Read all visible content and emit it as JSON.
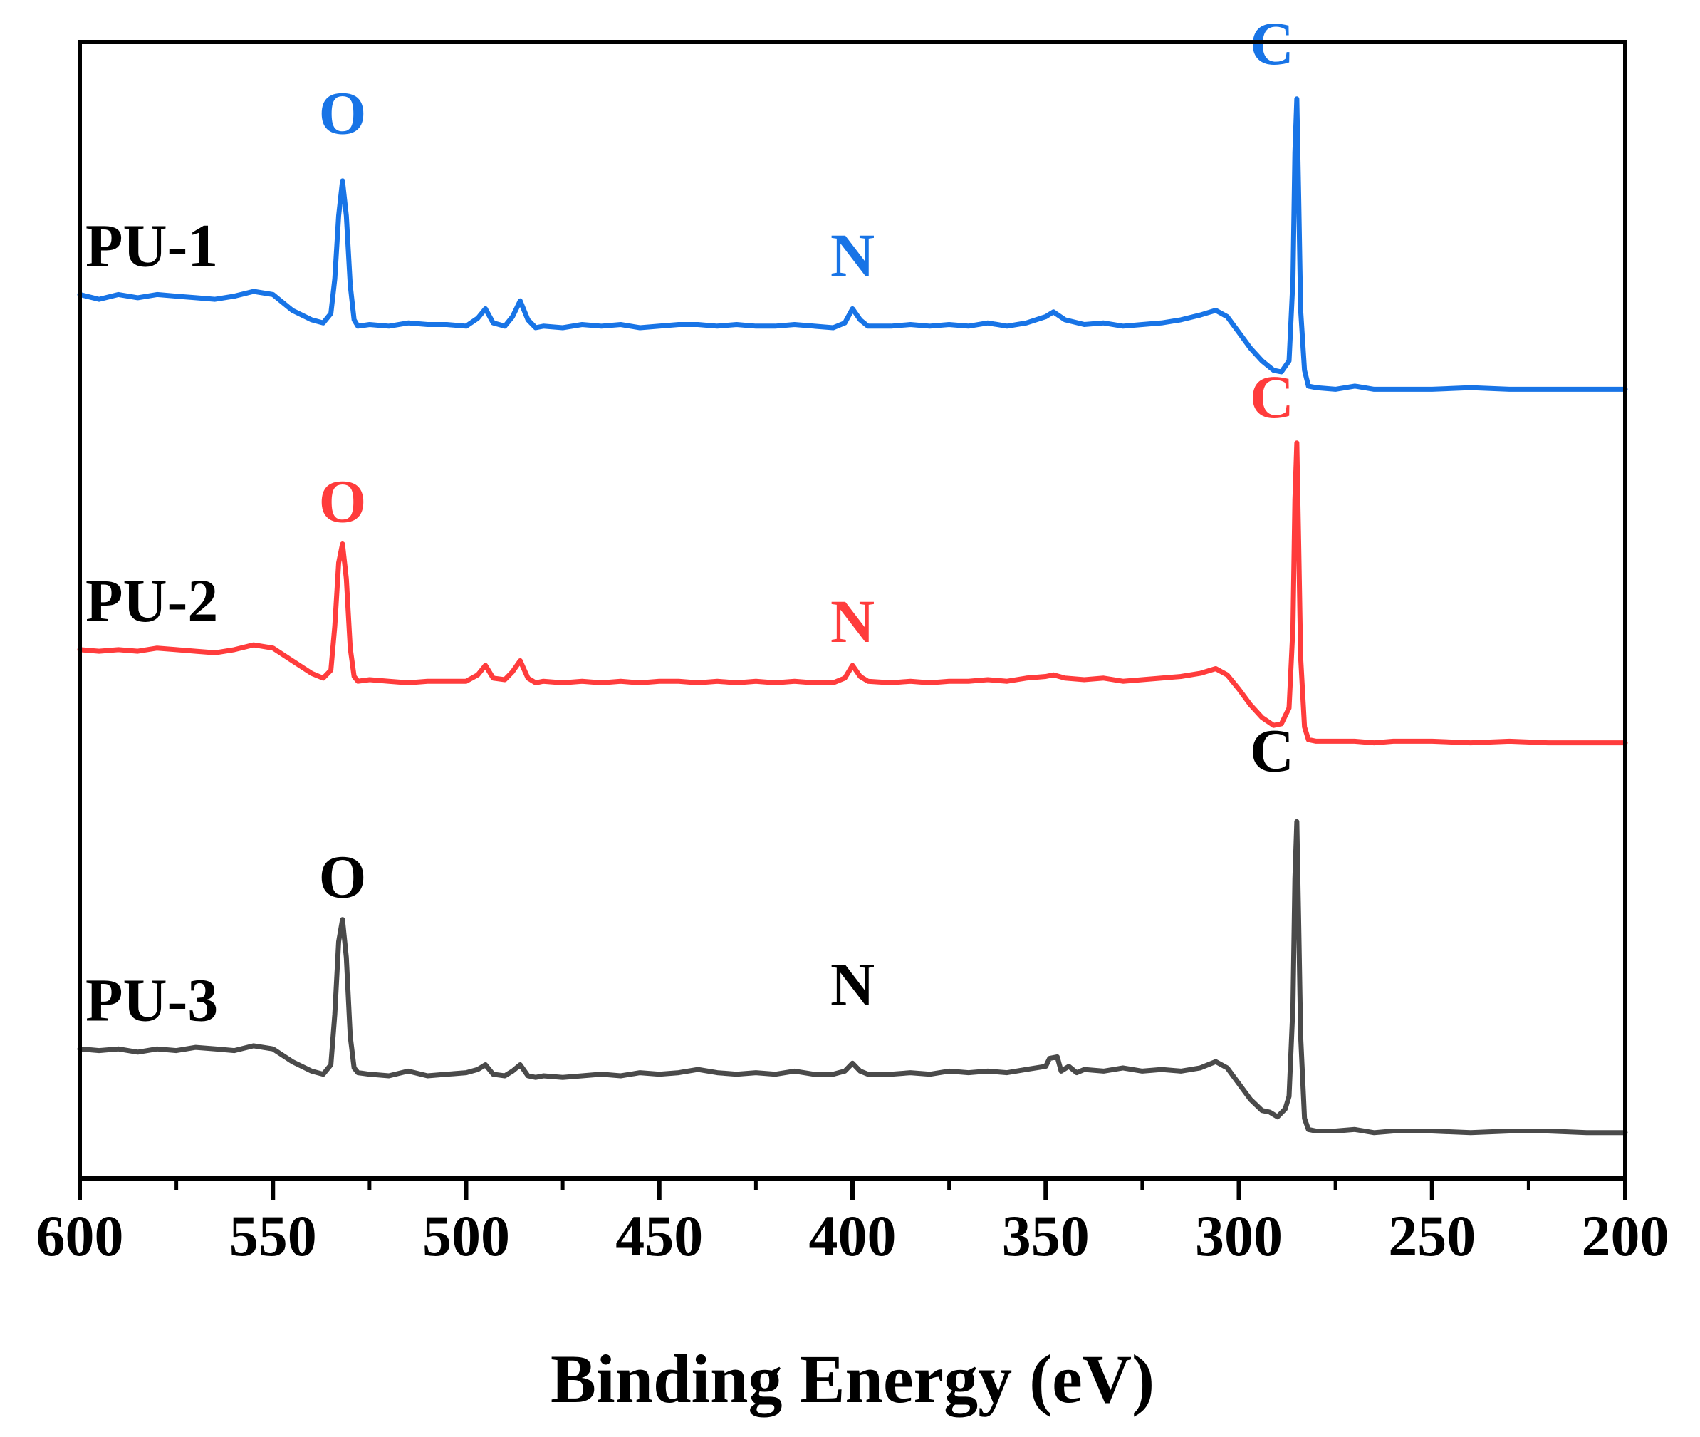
{
  "chart_data": {
    "type": "line",
    "xlabel": "Binding Energy (eV)",
    "ylabel": "",
    "xlim": [
      600,
      200
    ],
    "x_reversed": true,
    "ylim": [
      0,
      36
    ],
    "x_ticks": [
      600,
      550,
      500,
      450,
      400,
      350,
      300,
      250,
      200
    ],
    "x_tick_labels": [
      "600",
      "550",
      "500",
      "450",
      "400",
      "350",
      "300",
      "250",
      "200"
    ],
    "y_ticks_visible": false,
    "grid": false,
    "legend": "none",
    "series": [
      {
        "name": "PU-1",
        "color": "#1874e6",
        "peak_labels": [
          {
            "text": "O",
            "x": 532,
            "y": 33.1
          },
          {
            "text": "N",
            "x": 400,
            "y": 28.6
          },
          {
            "text": "C",
            "x": 285,
            "y": 35.3
          }
        ],
        "points": [
          [
            600,
            28.0
          ],
          [
            595,
            27.85
          ],
          [
            590,
            28.0
          ],
          [
            585,
            27.9
          ],
          [
            580,
            28.0
          ],
          [
            575,
            27.95
          ],
          [
            570,
            27.9
          ],
          [
            565,
            27.85
          ],
          [
            560,
            27.95
          ],
          [
            555,
            28.1
          ],
          [
            550,
            28.0
          ],
          [
            545,
            27.5
          ],
          [
            540,
            27.2
          ],
          [
            537,
            27.1
          ],
          [
            535,
            27.4
          ],
          [
            534,
            28.5
          ],
          [
            533,
            30.5
          ],
          [
            532,
            31.6
          ],
          [
            531,
            30.5
          ],
          [
            530,
            28.3
          ],
          [
            529,
            27.2
          ],
          [
            528,
            27.0
          ],
          [
            525,
            27.05
          ],
          [
            520,
            27.0
          ],
          [
            515,
            27.1
          ],
          [
            510,
            27.05
          ],
          [
            505,
            27.05
          ],
          [
            500,
            27.0
          ],
          [
            497,
            27.25
          ],
          [
            495,
            27.55
          ],
          [
            493,
            27.1
          ],
          [
            490,
            27.0
          ],
          [
            488,
            27.3
          ],
          [
            486,
            27.8
          ],
          [
            484,
            27.2
          ],
          [
            482,
            26.95
          ],
          [
            480,
            27.0
          ],
          [
            475,
            26.95
          ],
          [
            470,
            27.05
          ],
          [
            465,
            27.0
          ],
          [
            460,
            27.05
          ],
          [
            455,
            26.95
          ],
          [
            450,
            27.0
          ],
          [
            445,
            27.05
          ],
          [
            440,
            27.05
          ],
          [
            435,
            27.0
          ],
          [
            430,
            27.05
          ],
          [
            425,
            27.0
          ],
          [
            420,
            27.0
          ],
          [
            415,
            27.05
          ],
          [
            410,
            27.0
          ],
          [
            405,
            26.95
          ],
          [
            402,
            27.1
          ],
          [
            400,
            27.55
          ],
          [
            398,
            27.2
          ],
          [
            396,
            27.0
          ],
          [
            390,
            27.0
          ],
          [
            385,
            27.05
          ],
          [
            380,
            27.0
          ],
          [
            375,
            27.05
          ],
          [
            370,
            27.0
          ],
          [
            365,
            27.1
          ],
          [
            360,
            27.0
          ],
          [
            355,
            27.1
          ],
          [
            350,
            27.3
          ],
          [
            348,
            27.45
          ],
          [
            345,
            27.2
          ],
          [
            340,
            27.05
          ],
          [
            335,
            27.1
          ],
          [
            330,
            27.0
          ],
          [
            325,
            27.05
          ],
          [
            320,
            27.1
          ],
          [
            315,
            27.2
          ],
          [
            310,
            27.35
          ],
          [
            306,
            27.5
          ],
          [
            303,
            27.3
          ],
          [
            300,
            26.8
          ],
          [
            297,
            26.3
          ],
          [
            294,
            25.9
          ],
          [
            291,
            25.6
          ],
          [
            289,
            25.55
          ],
          [
            287,
            25.9
          ],
          [
            286,
            28.5
          ],
          [
            285.5,
            32.5
          ],
          [
            285,
            34.2
          ],
          [
            284.5,
            31.0
          ],
          [
            284,
            27.5
          ],
          [
            283,
            25.6
          ],
          [
            282,
            25.1
          ],
          [
            280,
            25.05
          ],
          [
            275,
            25.0
          ],
          [
            270,
            25.1
          ],
          [
            265,
            25.0
          ],
          [
            260,
            25.0
          ],
          [
            250,
            25.0
          ],
          [
            240,
            25.05
          ],
          [
            230,
            25.0
          ],
          [
            220,
            25.0
          ],
          [
            210,
            25.0
          ],
          [
            200,
            25.0
          ]
        ]
      },
      {
        "name": "PU-2",
        "color": "#ff3c3c",
        "peak_labels": [
          {
            "text": "O",
            "x": 532,
            "y": 20.8
          },
          {
            "text": "N",
            "x": 400,
            "y": 17.0
          },
          {
            "text": "C",
            "x": 285,
            "y": 24.1
          }
        ],
        "points": [
          [
            600,
            16.75
          ],
          [
            595,
            16.7
          ],
          [
            590,
            16.75
          ],
          [
            585,
            16.7
          ],
          [
            580,
            16.8
          ],
          [
            575,
            16.75
          ],
          [
            570,
            16.7
          ],
          [
            565,
            16.65
          ],
          [
            560,
            16.75
          ],
          [
            555,
            16.9
          ],
          [
            550,
            16.8
          ],
          [
            545,
            16.4
          ],
          [
            540,
            16.0
          ],
          [
            537,
            15.85
          ],
          [
            535,
            16.1
          ],
          [
            534,
            17.5
          ],
          [
            533,
            19.5
          ],
          [
            532,
            20.1
          ],
          [
            531,
            19.0
          ],
          [
            530,
            16.8
          ],
          [
            529,
            15.9
          ],
          [
            528,
            15.75
          ],
          [
            525,
            15.8
          ],
          [
            520,
            15.75
          ],
          [
            515,
            15.7
          ],
          [
            510,
            15.75
          ],
          [
            505,
            15.75
          ],
          [
            500,
            15.75
          ],
          [
            497,
            15.95
          ],
          [
            495,
            16.25
          ],
          [
            493,
            15.85
          ],
          [
            490,
            15.8
          ],
          [
            488,
            16.05
          ],
          [
            486,
            16.4
          ],
          [
            484,
            15.85
          ],
          [
            482,
            15.7
          ],
          [
            480,
            15.75
          ],
          [
            475,
            15.7
          ],
          [
            470,
            15.75
          ],
          [
            465,
            15.7
          ],
          [
            460,
            15.75
          ],
          [
            455,
            15.7
          ],
          [
            450,
            15.75
          ],
          [
            445,
            15.75
          ],
          [
            440,
            15.7
          ],
          [
            435,
            15.75
          ],
          [
            430,
            15.7
          ],
          [
            425,
            15.75
          ],
          [
            420,
            15.7
          ],
          [
            415,
            15.75
          ],
          [
            410,
            15.7
          ],
          [
            405,
            15.7
          ],
          [
            402,
            15.85
          ],
          [
            400,
            16.25
          ],
          [
            398,
            15.9
          ],
          [
            396,
            15.75
          ],
          [
            390,
            15.7
          ],
          [
            385,
            15.75
          ],
          [
            380,
            15.7
          ],
          [
            375,
            15.75
          ],
          [
            370,
            15.75
          ],
          [
            365,
            15.8
          ],
          [
            360,
            15.75
          ],
          [
            355,
            15.85
          ],
          [
            350,
            15.9
          ],
          [
            348,
            15.95
          ],
          [
            345,
            15.85
          ],
          [
            340,
            15.8
          ],
          [
            335,
            15.85
          ],
          [
            330,
            15.75
          ],
          [
            325,
            15.8
          ],
          [
            320,
            15.85
          ],
          [
            315,
            15.9
          ],
          [
            310,
            16.0
          ],
          [
            306,
            16.15
          ],
          [
            303,
            15.95
          ],
          [
            300,
            15.5
          ],
          [
            297,
            15.0
          ],
          [
            294,
            14.6
          ],
          [
            291,
            14.35
          ],
          [
            289,
            14.4
          ],
          [
            287,
            14.9
          ],
          [
            286,
            17.5
          ],
          [
            285.5,
            21.5
          ],
          [
            285,
            23.3
          ],
          [
            284.5,
            20.0
          ],
          [
            284,
            16.5
          ],
          [
            283,
            14.3
          ],
          [
            282,
            13.9
          ],
          [
            280,
            13.85
          ],
          [
            275,
            13.85
          ],
          [
            270,
            13.85
          ],
          [
            265,
            13.8
          ],
          [
            260,
            13.85
          ],
          [
            250,
            13.85
          ],
          [
            240,
            13.8
          ],
          [
            230,
            13.85
          ],
          [
            220,
            13.8
          ],
          [
            210,
            13.8
          ],
          [
            200,
            13.8
          ]
        ]
      },
      {
        "name": "PU-3",
        "color": "#4a4a4a",
        "peak_labels": [
          {
            "text": "O",
            "x": 532,
            "y": 8.9
          },
          {
            "text": "N",
            "x": 400,
            "y": 5.5
          },
          {
            "text": "C",
            "x": 285,
            "y": 12.9
          }
        ],
        "points": [
          [
            600,
            4.1
          ],
          [
            595,
            4.05
          ],
          [
            590,
            4.1
          ],
          [
            585,
            4.0
          ],
          [
            580,
            4.1
          ],
          [
            575,
            4.05
          ],
          [
            570,
            4.15
          ],
          [
            565,
            4.1
          ],
          [
            560,
            4.05
          ],
          [
            555,
            4.2
          ],
          [
            550,
            4.1
          ],
          [
            545,
            3.7
          ],
          [
            540,
            3.4
          ],
          [
            537,
            3.3
          ],
          [
            535,
            3.6
          ],
          [
            534,
            5.2
          ],
          [
            533,
            7.5
          ],
          [
            532,
            8.2
          ],
          [
            531,
            7.0
          ],
          [
            530,
            4.5
          ],
          [
            529,
            3.5
          ],
          [
            528,
            3.35
          ],
          [
            525,
            3.3
          ],
          [
            520,
            3.25
          ],
          [
            515,
            3.4
          ],
          [
            510,
            3.25
          ],
          [
            505,
            3.3
          ],
          [
            500,
            3.35
          ],
          [
            497,
            3.45
          ],
          [
            495,
            3.6
          ],
          [
            493,
            3.3
          ],
          [
            490,
            3.25
          ],
          [
            488,
            3.4
          ],
          [
            486,
            3.6
          ],
          [
            484,
            3.25
          ],
          [
            482,
            3.2
          ],
          [
            480,
            3.25
          ],
          [
            475,
            3.2
          ],
          [
            470,
            3.25
          ],
          [
            465,
            3.3
          ],
          [
            460,
            3.25
          ],
          [
            455,
            3.35
          ],
          [
            450,
            3.3
          ],
          [
            445,
            3.35
          ],
          [
            440,
            3.45
          ],
          [
            435,
            3.35
          ],
          [
            430,
            3.3
          ],
          [
            425,
            3.35
          ],
          [
            420,
            3.3
          ],
          [
            415,
            3.4
          ],
          [
            410,
            3.3
          ],
          [
            405,
            3.3
          ],
          [
            402,
            3.4
          ],
          [
            400,
            3.65
          ],
          [
            398,
            3.4
          ],
          [
            396,
            3.3
          ],
          [
            390,
            3.3
          ],
          [
            385,
            3.35
          ],
          [
            380,
            3.3
          ],
          [
            375,
            3.4
          ],
          [
            370,
            3.35
          ],
          [
            365,
            3.4
          ],
          [
            360,
            3.35
          ],
          [
            355,
            3.45
          ],
          [
            350,
            3.55
          ],
          [
            349,
            3.8
          ],
          [
            347,
            3.85
          ],
          [
            346,
            3.4
          ],
          [
            344,
            3.55
          ],
          [
            342,
            3.35
          ],
          [
            340,
            3.45
          ],
          [
            335,
            3.4
          ],
          [
            330,
            3.5
          ],
          [
            325,
            3.4
          ],
          [
            320,
            3.45
          ],
          [
            315,
            3.4
          ],
          [
            310,
            3.5
          ],
          [
            306,
            3.7
          ],
          [
            303,
            3.5
          ],
          [
            300,
            3.0
          ],
          [
            297,
            2.5
          ],
          [
            294,
            2.15
          ],
          [
            292,
            2.1
          ],
          [
            290,
            1.95
          ],
          [
            288,
            2.2
          ],
          [
            287,
            2.6
          ],
          [
            286,
            5.5
          ],
          [
            285.5,
            9.5
          ],
          [
            285,
            11.3
          ],
          [
            284.5,
            8.0
          ],
          [
            284,
            4.5
          ],
          [
            283,
            1.9
          ],
          [
            282,
            1.55
          ],
          [
            280,
            1.5
          ],
          [
            275,
            1.5
          ],
          [
            270,
            1.55
          ],
          [
            265,
            1.45
          ],
          [
            260,
            1.5
          ],
          [
            250,
            1.5
          ],
          [
            240,
            1.45
          ],
          [
            230,
            1.5
          ],
          [
            220,
            1.5
          ],
          [
            210,
            1.45
          ],
          [
            200,
            1.45
          ]
        ]
      }
    ]
  }
}
